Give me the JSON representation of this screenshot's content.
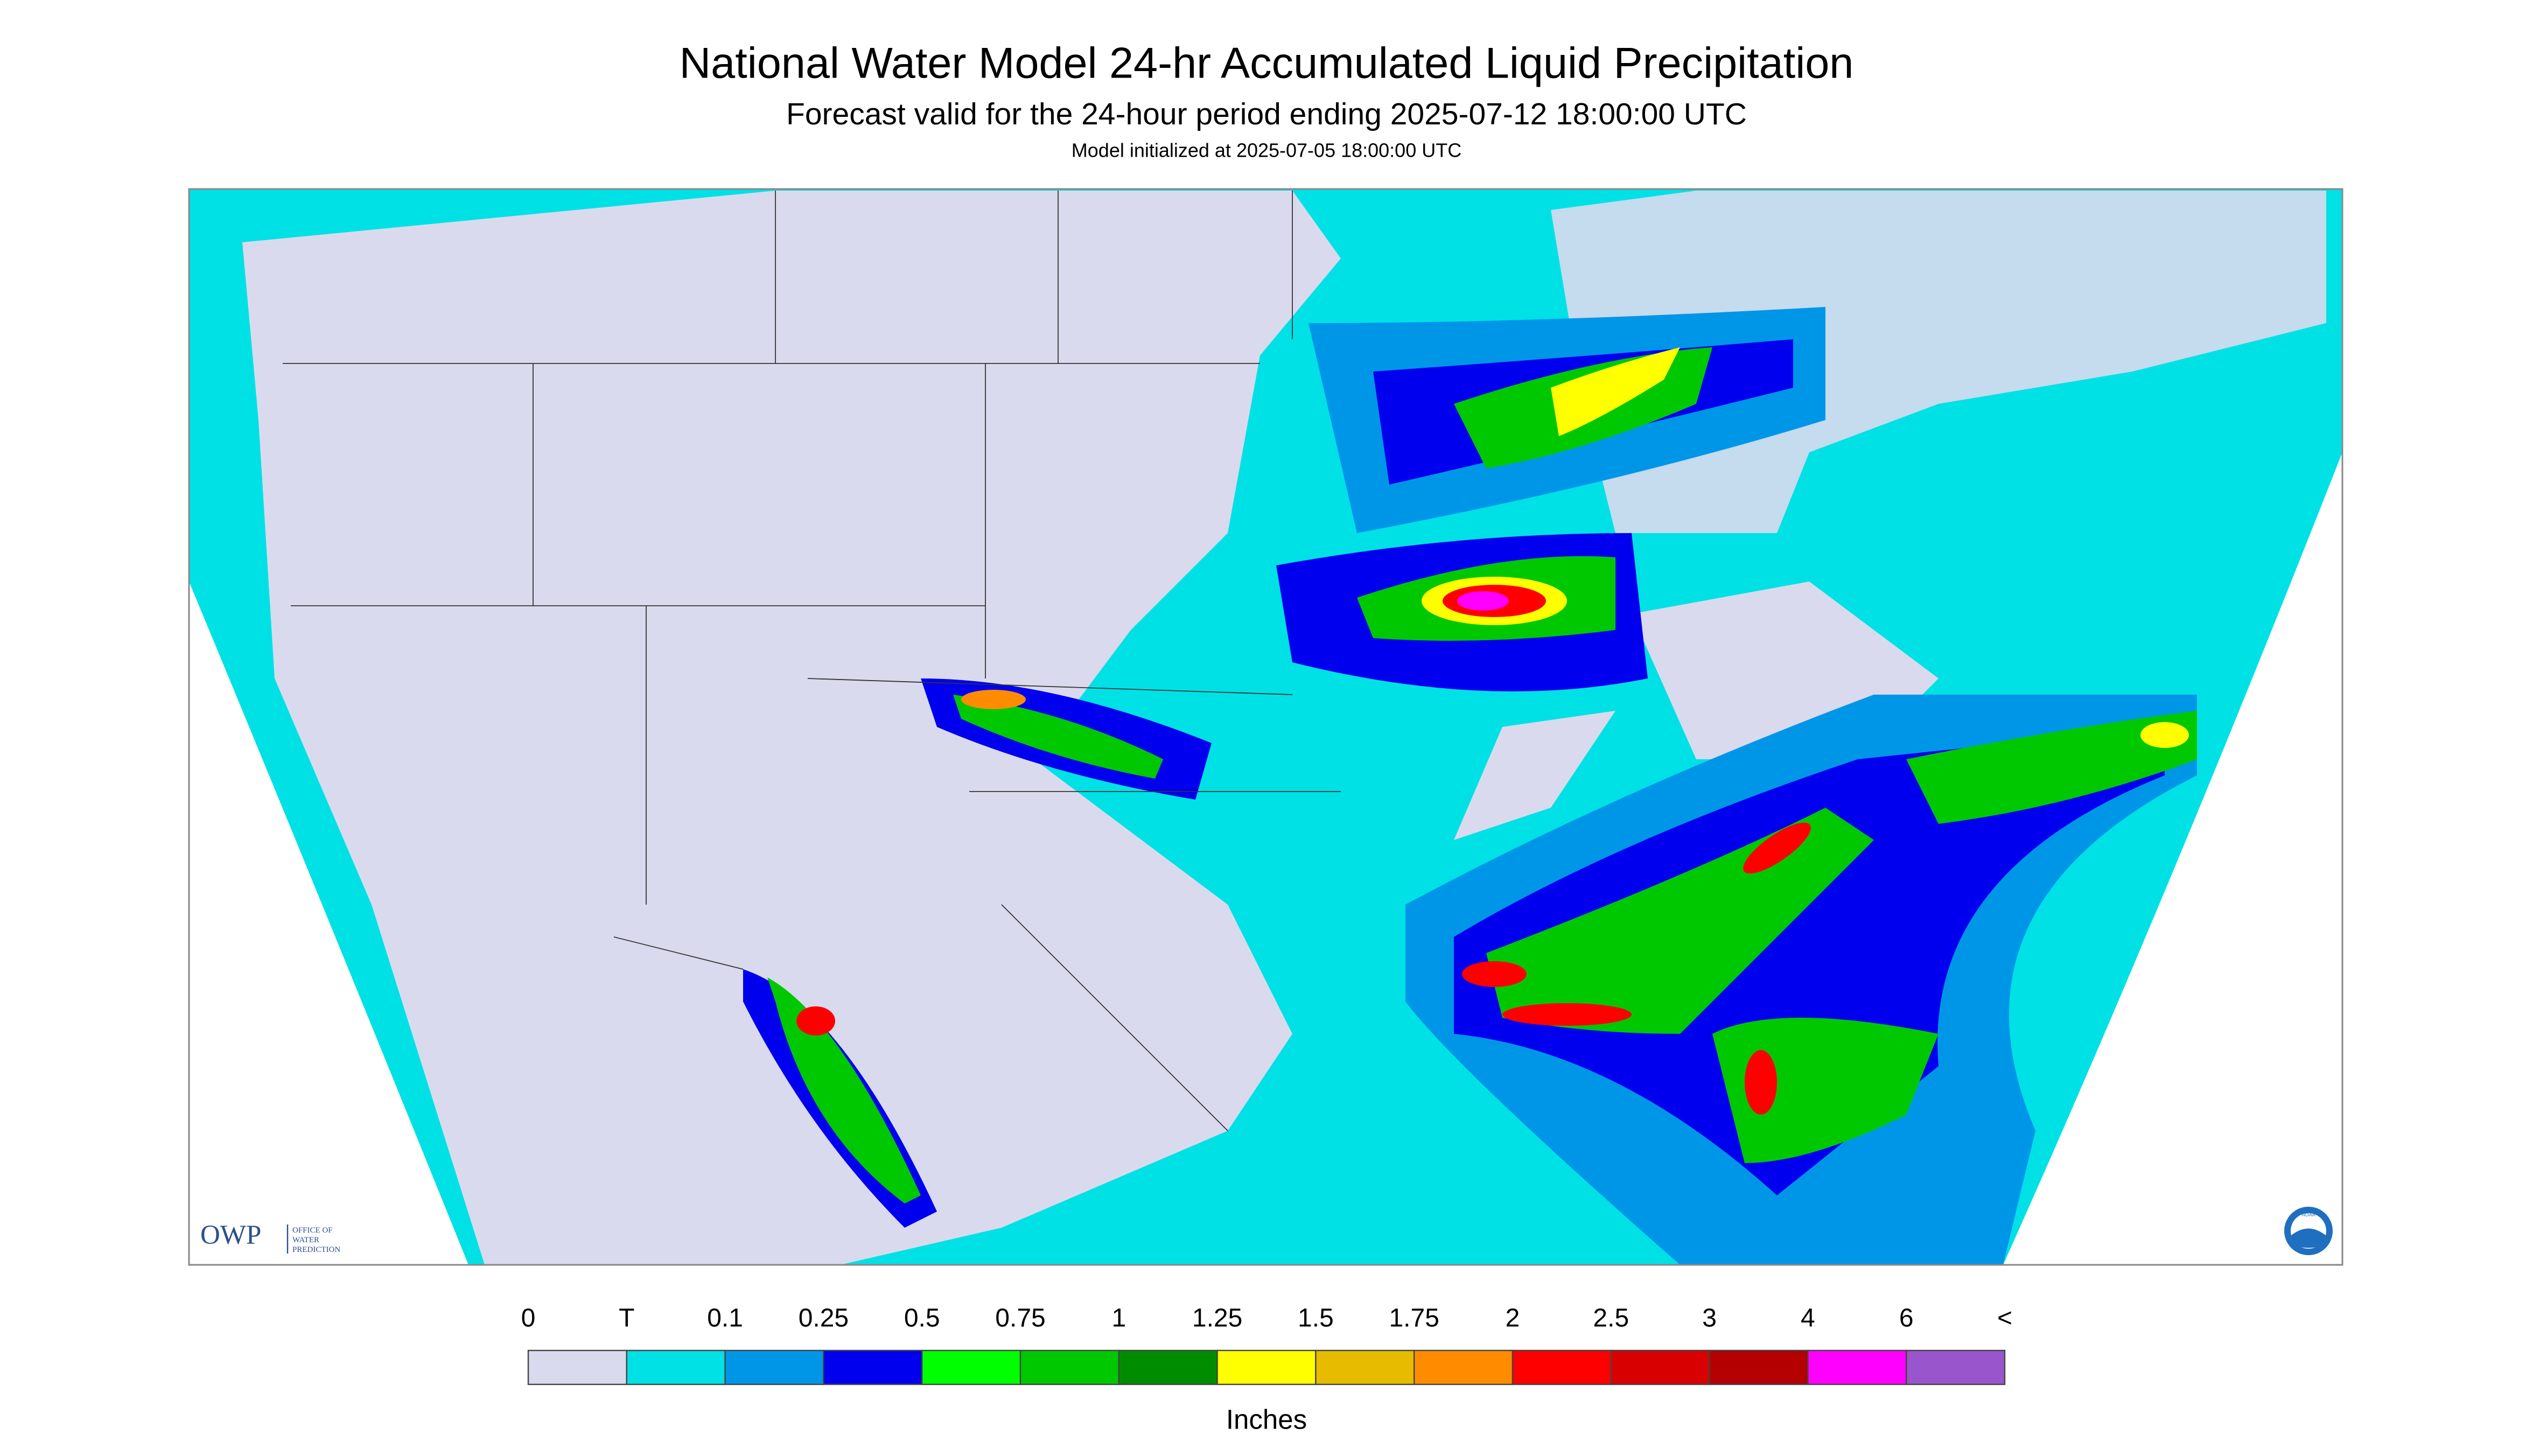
{
  "header": {
    "title": "National Water Model 24-hr Accumulated Liquid Precipitation",
    "subtitle": "Forecast valid for the 24-hour period ending 2025-07-12 18:00:00 UTC",
    "init": "Model initialized at 2025-07-05 18:00:00 UTC"
  },
  "logo": {
    "short": "OWP",
    "lines": [
      "OFFICE OF",
      "WATER",
      "PREDICTION"
    ],
    "badge": "NOAA"
  },
  "legend": {
    "labels": [
      "0",
      "T",
      "0.1",
      "0.25",
      "0.5",
      "0.75",
      "1",
      "1.25",
      "1.5",
      "1.75",
      "2",
      "2.5",
      "3",
      "4",
      "6",
      "<"
    ],
    "colors": [
      "#dadaee",
      "#00e1e6",
      "#0096e8",
      "#0000ee",
      "#00ff00",
      "#00c800",
      "#008c00",
      "#ffff00",
      "#e6bb00",
      "#ff8c00",
      "#ff0000",
      "#d80000",
      "#b40000",
      "#ff00ff",
      "#9955cc"
    ],
    "unit": "Inches"
  }
}
